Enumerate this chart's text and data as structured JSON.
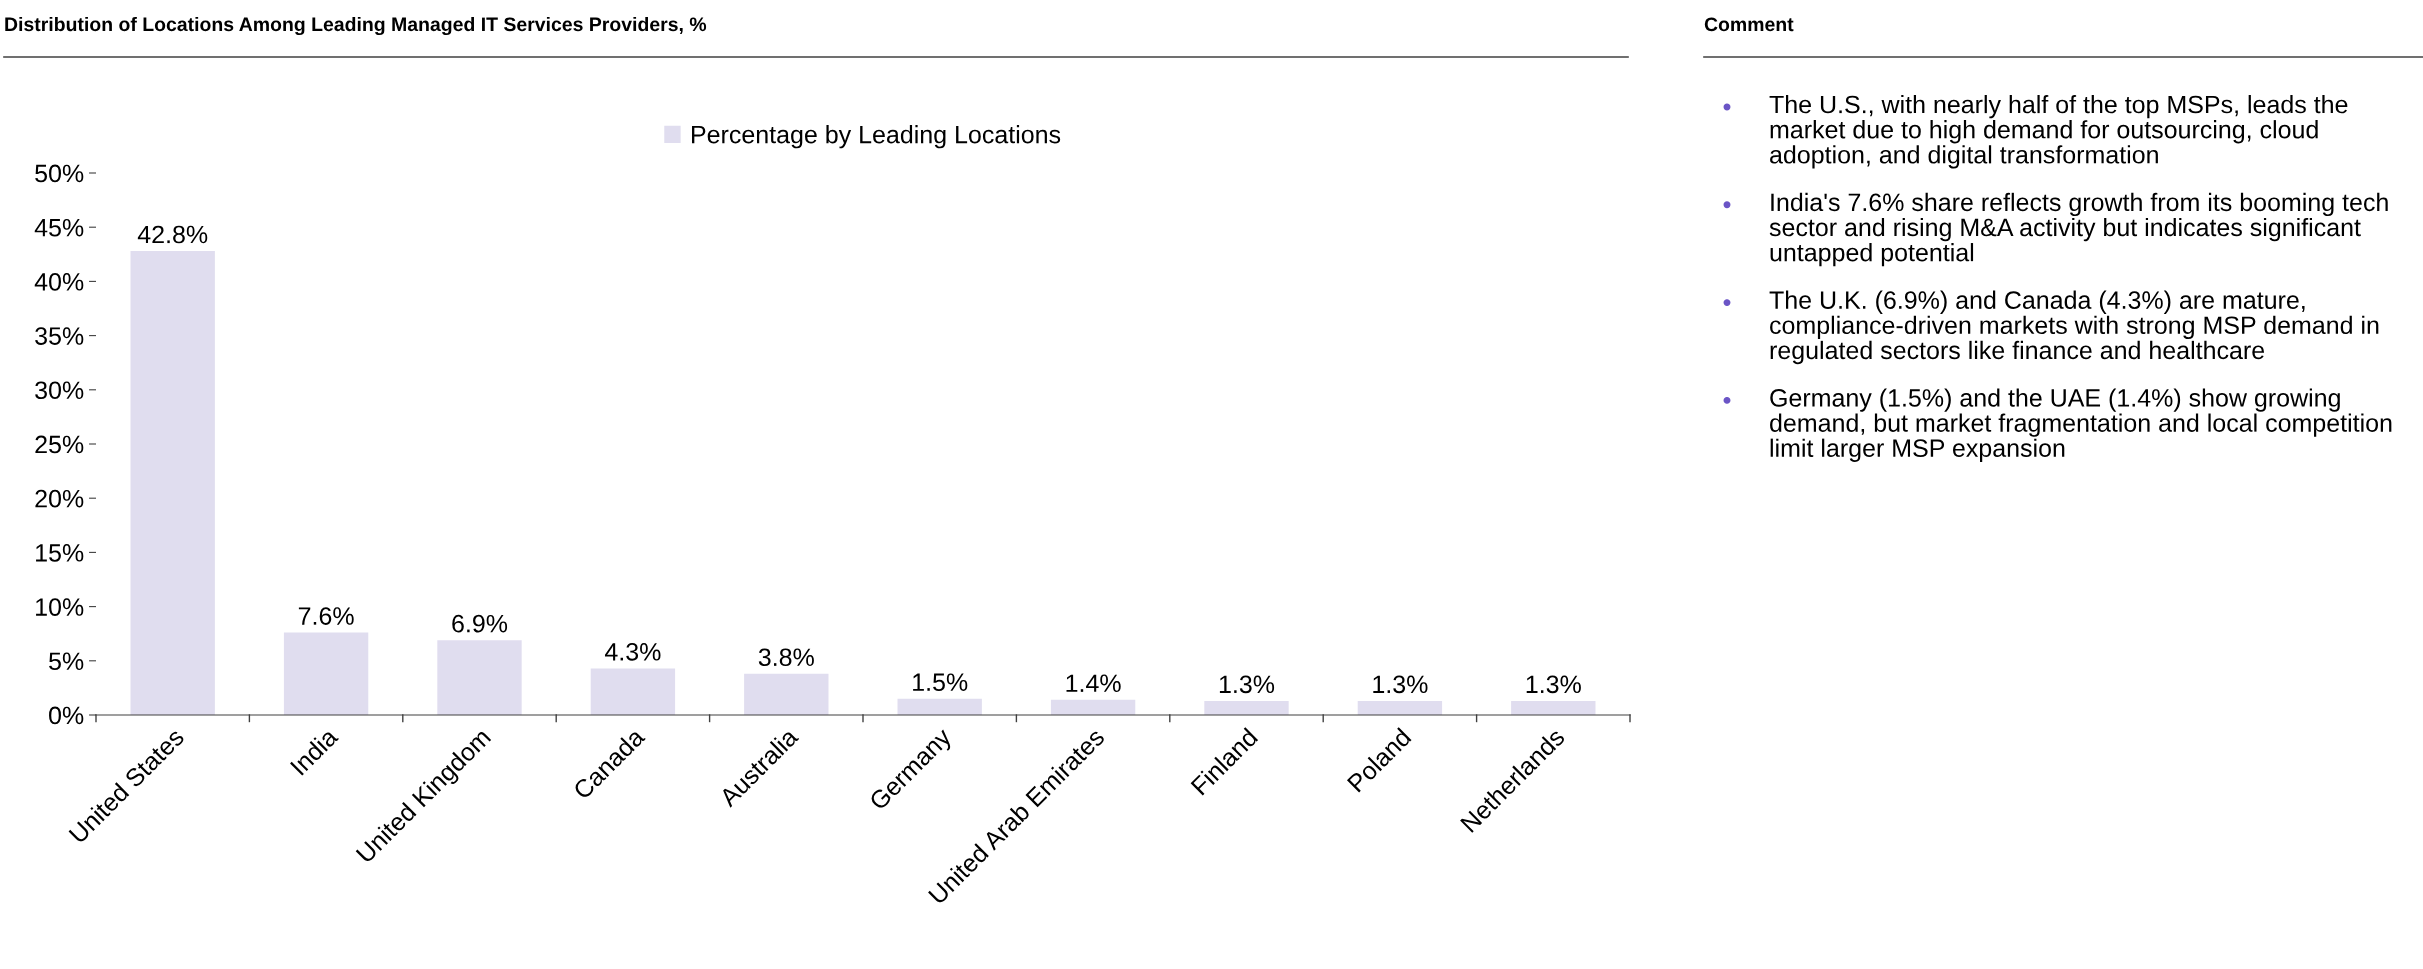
{
  "chart_data": [
    {
      "type": "bar",
      "title": "Distribution of Locations Among Leading Managed IT Services Providers, %",
      "categories": [
        "United States",
        "India",
        "United Kingdom",
        "Canada",
        "Australia",
        "Germany",
        "United Arab Emirates",
        "Finland",
        "Poland",
        "Netherlands"
      ],
      "series": [
        {
          "name": "Percentage by Leading Locations",
          "color": "#e0ddef",
          "values": [
            42.8,
            7.6,
            6.9,
            4.3,
            3.8,
            1.5,
            1.4,
            1.3,
            1.3,
            1.3
          ],
          "value_labels": [
            "42.8%",
            "7.6%",
            "6.9%",
            "4.3%",
            "3.8%",
            "1.5%",
            "1.4%",
            "1.3%",
            "1.3%",
            "1.3%"
          ]
        }
      ],
      "ylim": [
        0,
        50
      ],
      "yticks": [
        {
          "value": 0,
          "label": "0%"
        },
        {
          "value": 5,
          "label": "5%"
        },
        {
          "value": 10,
          "label": "10%"
        },
        {
          "value": 15,
          "label": "15%"
        },
        {
          "value": 20,
          "label": "20%"
        },
        {
          "value": 25,
          "label": "25%"
        },
        {
          "value": 30,
          "label": "30%"
        },
        {
          "value": 35,
          "label": "35%"
        },
        {
          "value": 40,
          "label": "40%"
        },
        {
          "value": 45,
          "label": "45%"
        },
        {
          "value": 50,
          "label": "50%"
        }
      ],
      "legend": "top",
      "grid": false
    },
    {
      "type": "other",
      "title": "Comment",
      "annotations": [
        "The U.S., with nearly half of the top MSPs, leads the market due to high demand for outsourcing, cloud adoption, and digital transformation",
        "India's 7.6% share reflects growth from its booming tech sector and rising M&A activity but indicates significant untapped potential",
        "The U.K. (6.9%) and Canada (4.3%) are mature, compliance-driven markets with strong MSP demand in regulated sectors like finance and healthcare",
        "Germany (1.5%) and the UAE (1.4%) show growing demand, but market fragmentation and local competition limit larger MSP expansion"
      ]
    }
  ]
}
